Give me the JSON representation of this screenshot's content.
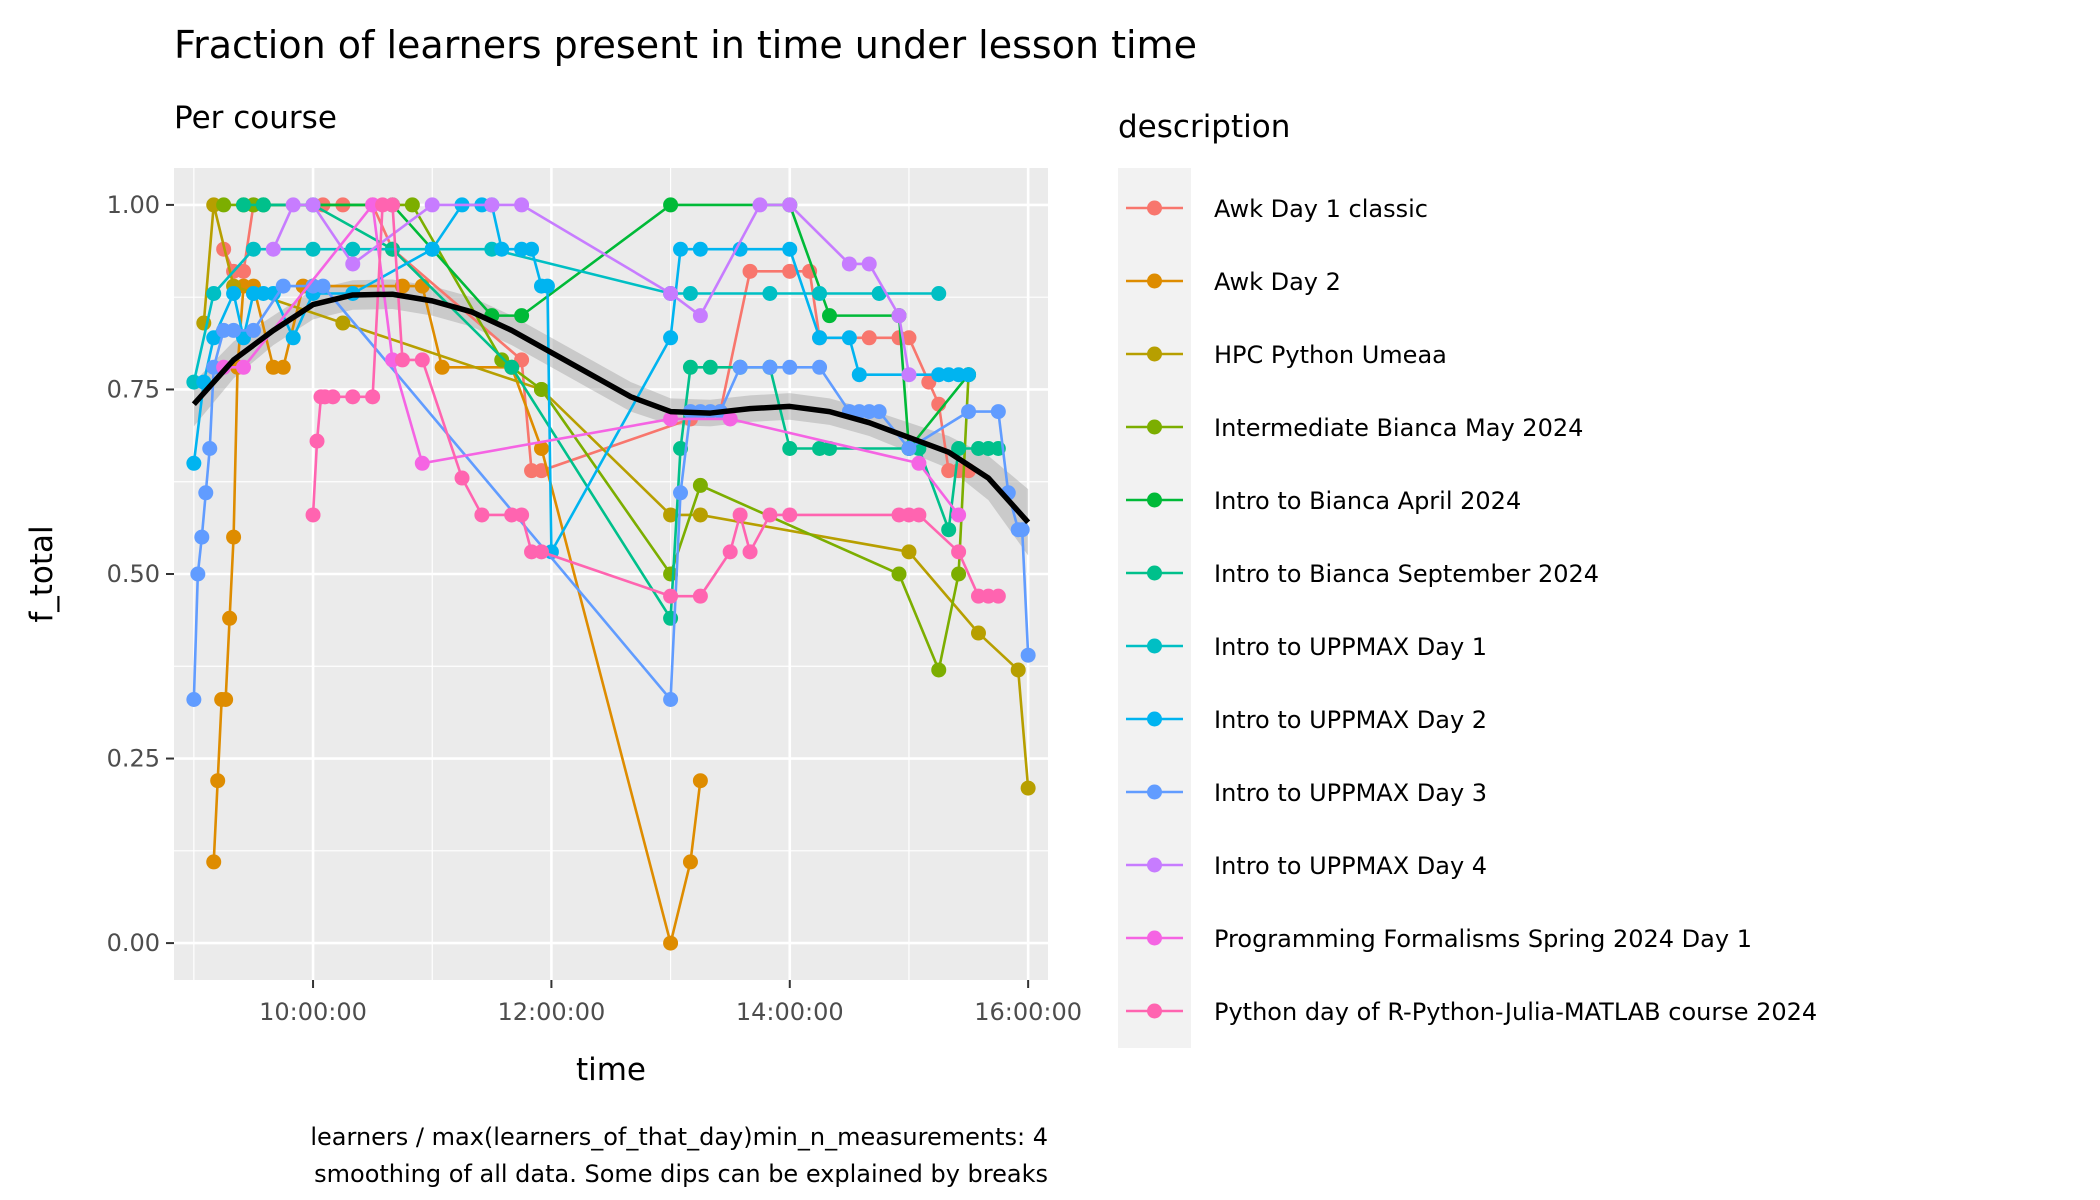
{
  "chart_data": {
    "type": "line",
    "title": "Fraction of learners present in time under lesson time",
    "subtitle": "Per course",
    "xlabel": "time",
    "ylabel": "f_total",
    "xlim": [
      "08:50:00",
      "16:10:00"
    ],
    "ylim": [
      -0.05,
      1.05
    ],
    "x_ticks": [
      "10:00:00",
      "12:00:00",
      "14:00:00",
      "16:00:00"
    ],
    "y_ticks": [
      "0.00",
      "0.25",
      "0.50",
      "0.75",
      "1.00"
    ],
    "grid": true,
    "legend_title": "description",
    "legend_position": "right",
    "caption_lines": [
      "learners / max(learners_of_that_day)min_n_measurements: 4",
      "smoothing of all data. Some dips can be explained by breaks"
    ],
    "series": [
      {
        "name": "Awk Day 1 classic",
        "color": "#F8766D",
        "points": [
          [
            "09:15",
            0.94
          ],
          [
            "09:20",
            0.91
          ],
          [
            "09:25",
            0.91
          ],
          [
            "09:30",
            1.0
          ],
          [
            "10:05",
            1.0
          ],
          [
            "10:15",
            1.0
          ],
          [
            "10:30",
            1.0
          ],
          [
            "10:40",
            0.94
          ],
          [
            "11:45",
            0.79
          ],
          [
            "11:50",
            0.64
          ],
          [
            "11:55",
            0.64
          ],
          [
            "13:10",
            0.71
          ],
          [
            "13:25",
            0.72
          ],
          [
            "13:40",
            0.91
          ],
          [
            "14:00",
            0.91
          ],
          [
            "14:10",
            0.91
          ],
          [
            "14:15",
            0.82
          ],
          [
            "14:40",
            0.82
          ],
          [
            "14:55",
            0.82
          ],
          [
            "15:00",
            0.82
          ],
          [
            "15:10",
            0.76
          ],
          [
            "15:15",
            0.73
          ],
          [
            "15:20",
            0.64
          ],
          [
            "15:25",
            0.64
          ],
          [
            "15:30",
            0.64
          ]
        ]
      },
      {
        "name": "Awk Day 2",
        "color": "#DE8C00",
        "points": [
          [
            "09:10",
            0.11
          ],
          [
            "09:12",
            0.22
          ],
          [
            "09:14",
            0.33
          ],
          [
            "09:16",
            0.33
          ],
          [
            "09:18",
            0.44
          ],
          [
            "09:20",
            0.55
          ],
          [
            "09:22",
            0.78
          ],
          [
            "09:25",
            0.89
          ],
          [
            "09:30",
            0.89
          ],
          [
            "09:40",
            0.78
          ],
          [
            "09:45",
            0.78
          ],
          [
            "09:55",
            0.89
          ],
          [
            "10:00",
            0.89
          ],
          [
            "10:45",
            0.89
          ],
          [
            "10:55",
            0.89
          ],
          [
            "11:05",
            0.78
          ],
          [
            "11:40",
            0.78
          ],
          [
            "11:55",
            0.67
          ],
          [
            "13:00",
            0.0
          ],
          [
            "13:10",
            0.11
          ],
          [
            "13:15",
            0.22
          ]
        ]
      },
      {
        "name": "HPC Python Umeaa",
        "color": "#B79F00",
        "points": [
          [
            "09:05",
            0.84
          ],
          [
            "09:10",
            1.0
          ],
          [
            "09:20",
            0.89
          ],
          [
            "10:15",
            0.84
          ],
          [
            "11:55",
            0.75
          ],
          [
            "13:00",
            0.58
          ],
          [
            "13:15",
            0.58
          ],
          [
            "15:00",
            0.53
          ],
          [
            "15:35",
            0.42
          ],
          [
            "15:55",
            0.37
          ],
          [
            "16:00",
            0.21
          ]
        ]
      },
      {
        "name": "Intermediate Bianca May 2024",
        "color": "#7CAE00",
        "points": [
          [
            "09:15",
            1.0
          ],
          [
            "09:25",
            1.0
          ],
          [
            "09:30",
            1.0
          ],
          [
            "10:50",
            1.0
          ],
          [
            "11:35",
            0.79
          ],
          [
            "11:55",
            0.75
          ],
          [
            "13:00",
            0.5
          ],
          [
            "13:15",
            0.62
          ],
          [
            "14:55",
            0.5
          ],
          [
            "15:15",
            0.37
          ],
          [
            "15:25",
            0.5
          ],
          [
            "15:30",
            0.77
          ]
        ]
      },
      {
        "name": "Intro to Bianca April 2024",
        "color": "#00BA38",
        "points": [
          [
            "09:35",
            1.0
          ],
          [
            "10:40",
            1.0
          ],
          [
            "11:30",
            0.85
          ],
          [
            "11:45",
            0.85
          ],
          [
            "13:00",
            1.0
          ],
          [
            "14:00",
            1.0
          ],
          [
            "14:20",
            0.85
          ],
          [
            "14:55",
            0.85
          ],
          [
            "15:00",
            0.67
          ],
          [
            "15:30",
            0.77
          ]
        ]
      },
      {
        "name": "Intro to Bianca September 2024",
        "color": "#00C08B",
        "points": [
          [
            "09:25",
            1.0
          ],
          [
            "09:35",
            1.0
          ],
          [
            "10:00",
            1.0
          ],
          [
            "10:40",
            0.94
          ],
          [
            "11:40",
            0.78
          ],
          [
            "13:00",
            0.44
          ],
          [
            "13:05",
            0.67
          ],
          [
            "13:10",
            0.78
          ],
          [
            "13:20",
            0.78
          ],
          [
            "13:35",
            0.78
          ],
          [
            "13:50",
            0.78
          ],
          [
            "14:00",
            0.67
          ],
          [
            "14:15",
            0.67
          ],
          [
            "14:20",
            0.67
          ],
          [
            "15:00",
            0.67
          ],
          [
            "15:05",
            0.67
          ],
          [
            "15:20",
            0.56
          ],
          [
            "15:25",
            0.67
          ],
          [
            "15:35",
            0.67
          ],
          [
            "15:40",
            0.67
          ],
          [
            "15:45",
            0.67
          ]
        ]
      },
      {
        "name": "Intro to UPPMAX Day 1",
        "color": "#00BFC4",
        "points": [
          [
            "09:00",
            0.76
          ],
          [
            "09:10",
            0.88
          ],
          [
            "09:30",
            0.94
          ],
          [
            "10:00",
            0.94
          ],
          [
            "10:20",
            0.94
          ],
          [
            "11:00",
            0.94
          ],
          [
            "11:30",
            0.94
          ],
          [
            "13:00",
            0.88
          ],
          [
            "13:10",
            0.88
          ],
          [
            "13:50",
            0.88
          ],
          [
            "14:15",
            0.88
          ],
          [
            "14:45",
            0.88
          ],
          [
            "15:15",
            0.88
          ]
        ]
      },
      {
        "name": "Intro to UPPMAX Day 2",
        "color": "#00B4F0",
        "points": [
          [
            "09:00",
            0.65
          ],
          [
            "09:05",
            0.76
          ],
          [
            "09:10",
            0.82
          ],
          [
            "09:20",
            0.88
          ],
          [
            "09:25",
            0.82
          ],
          [
            "09:30",
            0.88
          ],
          [
            "09:35",
            0.88
          ],
          [
            "09:40",
            0.88
          ],
          [
            "09:50",
            0.82
          ],
          [
            "10:00",
            0.88
          ],
          [
            "10:20",
            0.88
          ],
          [
            "11:00",
            0.94
          ],
          [
            "11:15",
            1.0
          ],
          [
            "11:25",
            1.0
          ],
          [
            "11:30",
            1.0
          ],
          [
            "11:35",
            0.94
          ],
          [
            "11:45",
            0.94
          ],
          [
            "11:50",
            0.94
          ],
          [
            "11:55",
            0.89
          ],
          [
            "11:58",
            0.89
          ],
          [
            "12:00",
            0.53
          ],
          [
            "13:00",
            0.82
          ],
          [
            "13:05",
            0.94
          ],
          [
            "13:15",
            0.94
          ],
          [
            "13:35",
            0.94
          ],
          [
            "14:00",
            0.94
          ],
          [
            "14:15",
            0.82
          ],
          [
            "14:30",
            0.82
          ],
          [
            "14:35",
            0.77
          ],
          [
            "15:15",
            0.77
          ],
          [
            "15:20",
            0.77
          ],
          [
            "15:25",
            0.77
          ],
          [
            "15:30",
            0.77
          ]
        ]
      },
      {
        "name": "Intro to UPPMAX Day 3",
        "color": "#619CFF",
        "points": [
          [
            "09:00",
            0.33
          ],
          [
            "09:02",
            0.5
          ],
          [
            "09:04",
            0.55
          ],
          [
            "09:06",
            0.61
          ],
          [
            "09:08",
            0.67
          ],
          [
            "09:10",
            0.78
          ],
          [
            "09:15",
            0.83
          ],
          [
            "09:20",
            0.83
          ],
          [
            "09:30",
            0.83
          ],
          [
            "09:45",
            0.89
          ],
          [
            "10:00",
            0.89
          ],
          [
            "10:05",
            0.89
          ],
          [
            "13:00",
            0.33
          ],
          [
            "13:05",
            0.61
          ],
          [
            "13:10",
            0.72
          ],
          [
            "13:15",
            0.72
          ],
          [
            "13:20",
            0.72
          ],
          [
            "13:25",
            0.72
          ],
          [
            "13:35",
            0.78
          ],
          [
            "13:50",
            0.78
          ],
          [
            "14:00",
            0.78
          ],
          [
            "14:15",
            0.78
          ],
          [
            "14:30",
            0.72
          ],
          [
            "14:35",
            0.72
          ],
          [
            "14:40",
            0.72
          ],
          [
            "14:45",
            0.72
          ],
          [
            "15:00",
            0.67
          ],
          [
            "15:30",
            0.72
          ],
          [
            "15:45",
            0.72
          ],
          [
            "15:50",
            0.61
          ],
          [
            "15:55",
            0.56
          ],
          [
            "15:57",
            0.56
          ],
          [
            "16:00",
            0.39
          ]
        ]
      },
      {
        "name": "Intro to UPPMAX Day 4",
        "color": "#C77CFF",
        "points": [
          [
            "09:40",
            0.94
          ],
          [
            "09:50",
            1.0
          ],
          [
            "10:00",
            1.0
          ],
          [
            "10:20",
            0.92
          ],
          [
            "11:00",
            1.0
          ],
          [
            "11:30",
            1.0
          ],
          [
            "11:45",
            1.0
          ],
          [
            "13:00",
            0.88
          ],
          [
            "13:15",
            0.85
          ],
          [
            "13:45",
            1.0
          ],
          [
            "14:00",
            1.0
          ],
          [
            "14:30",
            0.92
          ],
          [
            "14:40",
            0.92
          ],
          [
            "14:55",
            0.85
          ],
          [
            "15:00",
            0.77
          ]
        ]
      },
      {
        "name": "Programming Formalisms Spring 2024 Day 1",
        "color": "#F564E3",
        "points": [
          [
            "09:15",
            0.78
          ],
          [
            "09:25",
            0.78
          ],
          [
            "10:30",
            1.0
          ],
          [
            "10:40",
            0.79
          ],
          [
            "10:55",
            0.65
          ],
          [
            "13:00",
            0.71
          ],
          [
            "13:30",
            0.71
          ],
          [
            "15:05",
            0.65
          ],
          [
            "15:25",
            0.58
          ]
        ]
      },
      {
        "name": "Python day of R-Python-Julia-MATLAB course 2024",
        "color": "#FF64B0",
        "points": [
          [
            "10:00",
            0.58
          ],
          [
            "10:02",
            0.68
          ],
          [
            "10:04",
            0.74
          ],
          [
            "10:06",
            0.74
          ],
          [
            "10:10",
            0.74
          ],
          [
            "10:20",
            0.74
          ],
          [
            "10:30",
            0.74
          ],
          [
            "10:35",
            1.0
          ],
          [
            "10:40",
            1.0
          ],
          [
            "10:45",
            0.79
          ],
          [
            "10:55",
            0.79
          ],
          [
            "11:15",
            0.63
          ],
          [
            "11:25",
            0.58
          ],
          [
            "11:40",
            0.58
          ],
          [
            "11:45",
            0.58
          ],
          [
            "11:50",
            0.53
          ],
          [
            "11:55",
            0.53
          ],
          [
            "13:00",
            0.47
          ],
          [
            "13:15",
            0.47
          ],
          [
            "13:30",
            0.53
          ],
          [
            "13:35",
            0.58
          ],
          [
            "13:40",
            0.53
          ],
          [
            "13:50",
            0.58
          ],
          [
            "14:00",
            0.58
          ],
          [
            "14:55",
            0.58
          ],
          [
            "15:00",
            0.58
          ],
          [
            "15:05",
            0.58
          ],
          [
            "15:25",
            0.53
          ],
          [
            "15:35",
            0.47
          ],
          [
            "15:40",
            0.47
          ],
          [
            "15:45",
            0.47
          ]
        ]
      }
    ],
    "smooth": {
      "color": "#000000",
      "band_color": "#999999",
      "points": [
        [
          "09:00",
          0.73,
          0.03
        ],
        [
          "09:20",
          0.79,
          0.025
        ],
        [
          "09:40",
          0.83,
          0.02
        ],
        [
          "10:00",
          0.865,
          0.02
        ],
        [
          "10:20",
          0.878,
          0.02
        ],
        [
          "10:40",
          0.879,
          0.02
        ],
        [
          "11:00",
          0.87,
          0.02
        ],
        [
          "11:20",
          0.855,
          0.02
        ],
        [
          "11:40",
          0.83,
          0.02
        ],
        [
          "12:00",
          0.8,
          0.02
        ],
        [
          "12:20",
          0.77,
          0.02
        ],
        [
          "12:40",
          0.74,
          0.02
        ],
        [
          "13:00",
          0.72,
          0.018
        ],
        [
          "13:20",
          0.718,
          0.018
        ],
        [
          "13:40",
          0.724,
          0.018
        ],
        [
          "14:00",
          0.727,
          0.018
        ],
        [
          "14:20",
          0.72,
          0.018
        ],
        [
          "14:40",
          0.705,
          0.018
        ],
        [
          "15:00",
          0.685,
          0.02
        ],
        [
          "15:20",
          0.665,
          0.022
        ],
        [
          "15:40",
          0.63,
          0.03
        ],
        [
          "16:00",
          0.57,
          0.045
        ]
      ]
    }
  }
}
